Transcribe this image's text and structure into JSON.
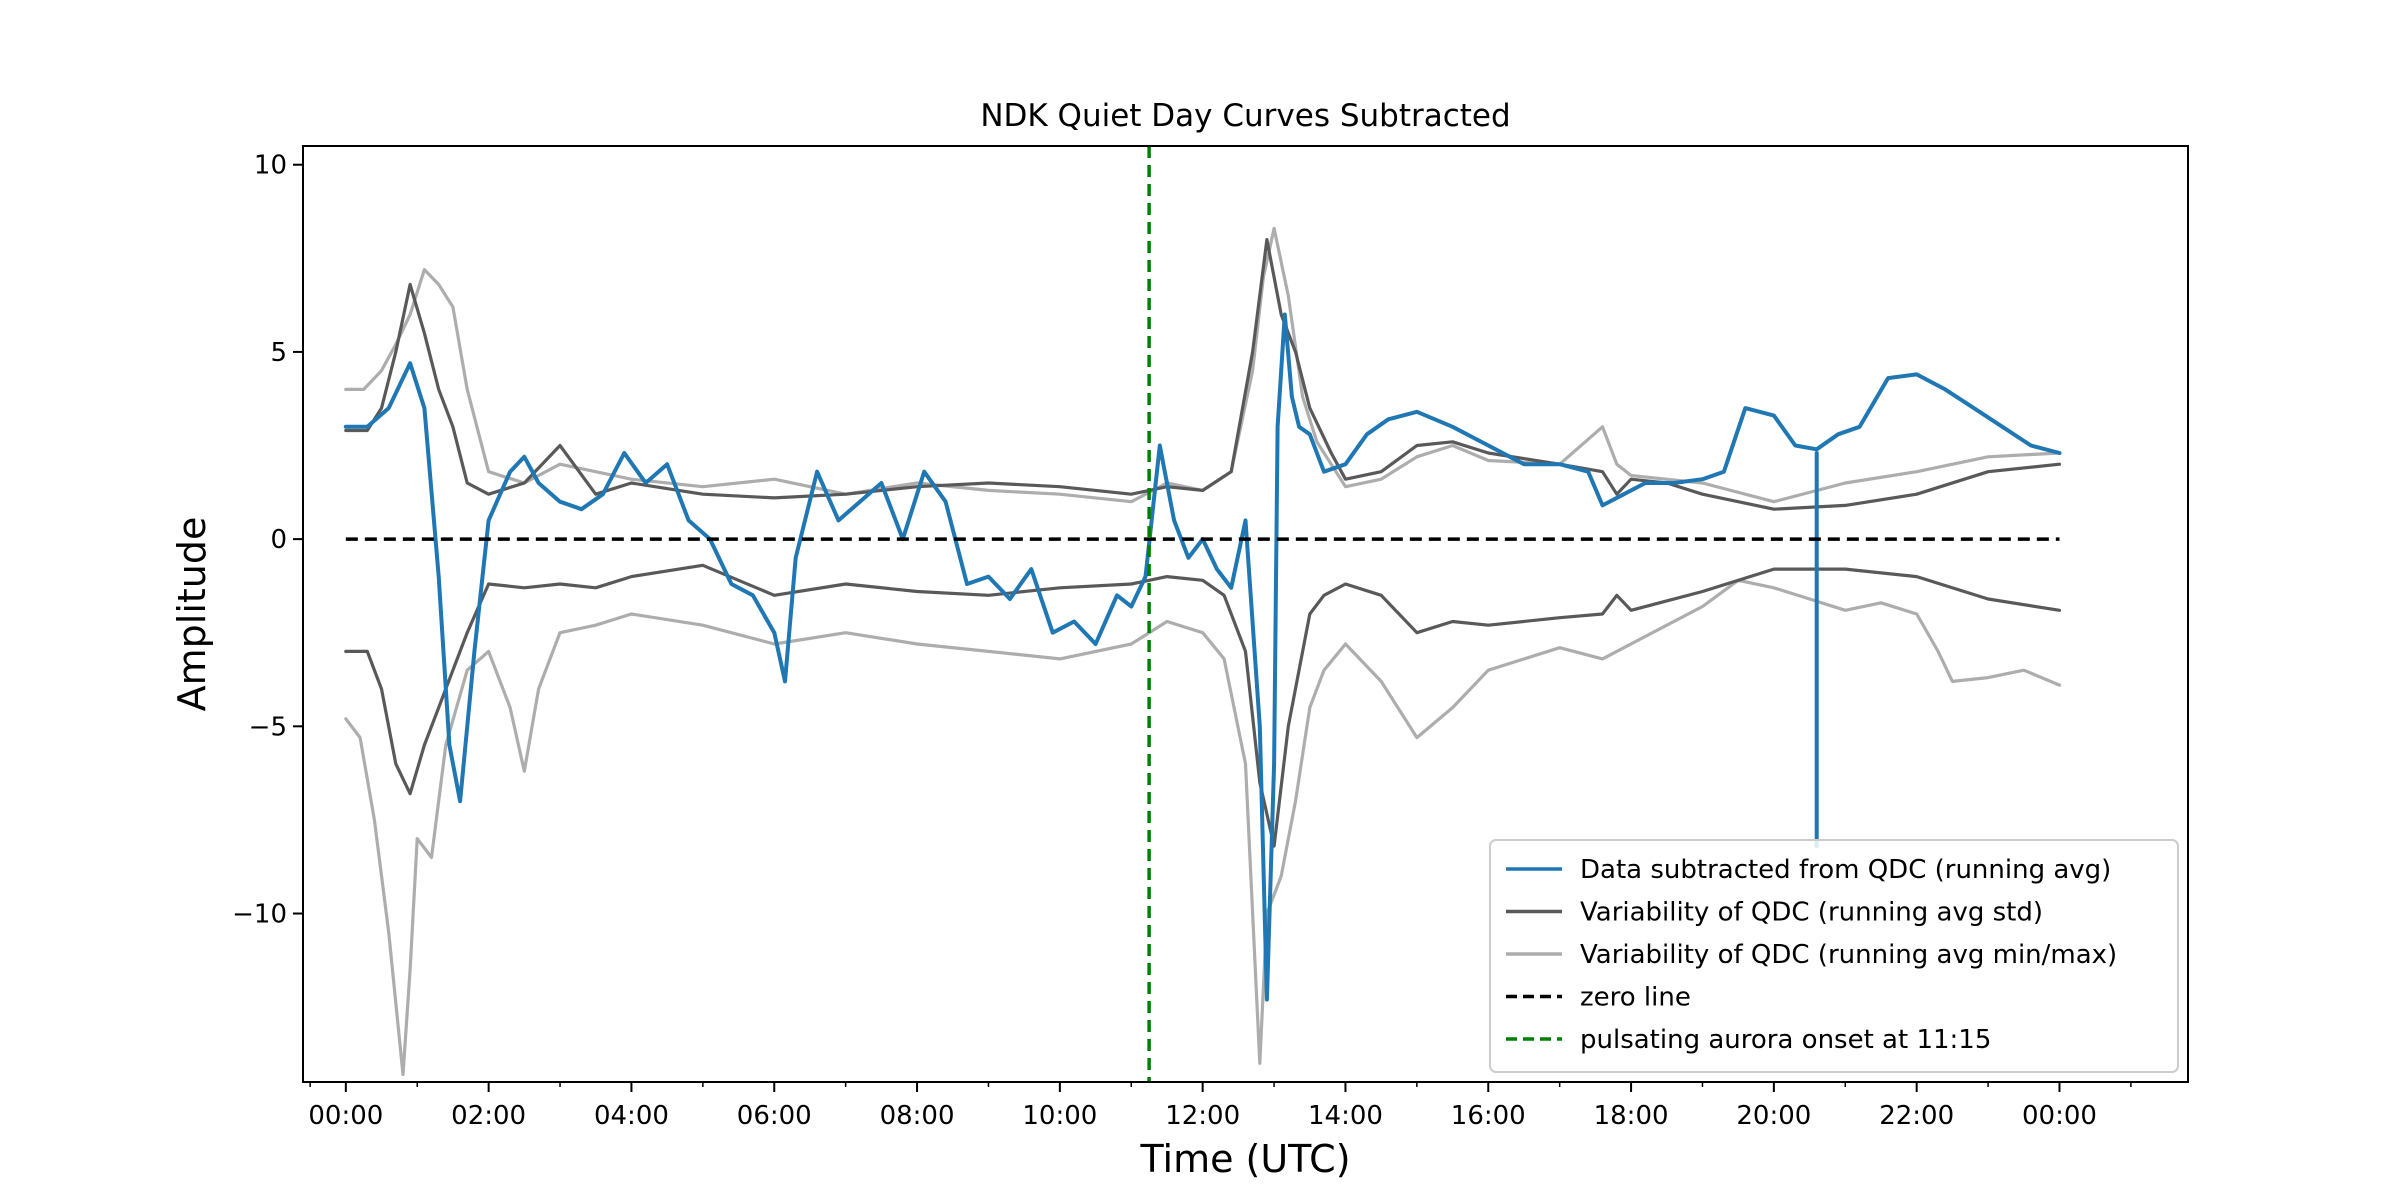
{
  "chart_data": {
    "type": "line",
    "title": "NDK Quiet Day Curves Subtracted",
    "xlabel": "Time (UTC)",
    "ylabel": "Amplitude",
    "x_unit": "hours (UTC)",
    "xlim": [
      -0.6,
      25.8
    ],
    "ylim": [
      -14.5,
      10.5
    ],
    "x_ticks": [
      0,
      2,
      4,
      6,
      8,
      10,
      12,
      14,
      16,
      18,
      20,
      22,
      24
    ],
    "x_tick_labels": [
      "00:00",
      "02:00",
      "04:00",
      "06:00",
      "08:00",
      "10:00",
      "12:00",
      "14:00",
      "16:00",
      "18:00",
      "20:00",
      "22:00",
      "00:00"
    ],
    "y_ticks": [
      10,
      5,
      0,
      -5,
      -10
    ],
    "y_tick_labels": [
      "10",
      "5",
      "0",
      "−5",
      "−10"
    ],
    "legend_position": "lower right",
    "grid": false,
    "series": [
      {
        "name": "Variability of QDC (running avg min/max)",
        "color": "#adadad",
        "style": "solid",
        "x": [
          0,
          0.25,
          0.5,
          0.7,
          0.9,
          1.1,
          1.3,
          1.5,
          1.7,
          2.0,
          2.5,
          3.0,
          3.5,
          4.0,
          5.0,
          6.0,
          7.0,
          8.0,
          9.0,
          10.0,
          11.0,
          11.5,
          12.0,
          12.4,
          12.7,
          12.85,
          13.0,
          13.2,
          13.4,
          13.6,
          14.0,
          14.5,
          15.0,
          15.5,
          16.0,
          17.0,
          17.6,
          17.8,
          18.0,
          19.0,
          20.0,
          21.0,
          22.0,
          23.0,
          24.0
        ],
        "y": [
          4.0,
          4.0,
          4.5,
          5.2,
          6.0,
          7.2,
          6.8,
          6.2,
          4.0,
          1.8,
          1.5,
          2.0,
          1.8,
          1.6,
          1.4,
          1.6,
          1.2,
          1.5,
          1.3,
          1.2,
          1.0,
          1.5,
          1.3,
          1.8,
          4.5,
          7.0,
          8.3,
          6.5,
          3.8,
          2.6,
          1.4,
          1.6,
          2.2,
          2.5,
          2.1,
          2.0,
          3.0,
          2.0,
          1.7,
          1.5,
          1.0,
          1.5,
          1.8,
          2.2,
          2.3
        ]
      },
      {
        "name": "Variability of QDC (running avg min/max)",
        "color": "#adadad",
        "style": "solid",
        "x": [
          0,
          0.2,
          0.4,
          0.6,
          0.8,
          0.9,
          1.0,
          1.2,
          1.4,
          1.7,
          2.0,
          2.3,
          2.5,
          2.7,
          3.0,
          3.5,
          4.0,
          5.0,
          6.0,
          7.0,
          8.0,
          9.0,
          10.0,
          11.0,
          11.5,
          12.0,
          12.3,
          12.6,
          12.8,
          12.9,
          13.1,
          13.3,
          13.5,
          13.7,
          14.0,
          14.5,
          15.0,
          15.5,
          16.0,
          17.0,
          17.6,
          17.9,
          18.5,
          19.0,
          19.5,
          20.0,
          20.5,
          21.0,
          21.5,
          22.0,
          22.3,
          22.5,
          23.0,
          23.5,
          24.0
        ],
        "y": [
          -4.8,
          -5.3,
          -7.5,
          -10.5,
          -14.3,
          -11.5,
          -8.0,
          -8.5,
          -5.5,
          -3.5,
          -3.0,
          -4.5,
          -6.2,
          -4.0,
          -2.5,
          -2.3,
          -2.0,
          -2.3,
          -2.8,
          -2.5,
          -2.8,
          -3.0,
          -3.2,
          -2.8,
          -2.2,
          -2.5,
          -3.2,
          -6.0,
          -14.0,
          -10.0,
          -9.0,
          -7.0,
          -4.5,
          -3.5,
          -2.8,
          -3.8,
          -5.3,
          -4.5,
          -3.5,
          -2.9,
          -3.2,
          -2.9,
          -2.3,
          -1.8,
          -1.1,
          -1.3,
          -1.6,
          -1.9,
          -1.7,
          -2.0,
          -3.0,
          -3.8,
          -3.7,
          -3.5,
          -3.9
        ]
      },
      {
        "name": "Variability of QDC (running avg std)",
        "color": "#595959",
        "style": "solid",
        "x": [
          0,
          0.3,
          0.5,
          0.7,
          0.9,
          1.1,
          1.3,
          1.5,
          1.7,
          2.0,
          2.5,
          3.0,
          3.5,
          4.0,
          5.0,
          6.0,
          7.0,
          8.0,
          9.0,
          10.0,
          11.0,
          11.5,
          12.0,
          12.4,
          12.7,
          12.9,
          13.1,
          13.3,
          13.5,
          13.8,
          14.0,
          14.5,
          15.0,
          15.5,
          16.0,
          17.0,
          17.6,
          17.8,
          18.0,
          18.5,
          19.0,
          19.5,
          20.0,
          21.0,
          22.0,
          23.0,
          24.0
        ],
        "y": [
          2.9,
          2.9,
          3.5,
          5.0,
          6.8,
          5.5,
          4.0,
          3.0,
          1.5,
          1.2,
          1.5,
          2.5,
          1.2,
          1.5,
          1.2,
          1.1,
          1.2,
          1.4,
          1.5,
          1.4,
          1.2,
          1.4,
          1.3,
          1.8,
          5.0,
          8.0,
          6.0,
          5.0,
          3.5,
          2.3,
          1.6,
          1.8,
          2.5,
          2.6,
          2.3,
          2.0,
          1.8,
          1.2,
          1.6,
          1.5,
          1.2,
          1.0,
          0.8,
          0.9,
          1.2,
          1.8,
          2.0
        ]
      },
      {
        "name": "Variability of QDC (running avg std)",
        "color": "#595959",
        "style": "solid",
        "x": [
          0,
          0.3,
          0.5,
          0.7,
          0.9,
          1.1,
          1.3,
          1.5,
          1.7,
          2.0,
          2.5,
          3.0,
          3.5,
          4.0,
          5.0,
          6.0,
          7.0,
          8.0,
          9.0,
          10.0,
          11.0,
          11.5,
          12.0,
          12.3,
          12.6,
          12.8,
          13.0,
          13.2,
          13.5,
          13.7,
          14.0,
          14.5,
          15.0,
          15.5,
          16.0,
          17.0,
          17.6,
          17.8,
          18.0,
          19.0,
          20.0,
          21.0,
          22.0,
          23.0,
          24.0
        ],
        "y": [
          -3.0,
          -3.0,
          -4.0,
          -6.0,
          -6.8,
          -5.5,
          -4.5,
          -3.5,
          -2.5,
          -1.2,
          -1.3,
          -1.2,
          -1.3,
          -1.0,
          -0.7,
          -1.5,
          -1.2,
          -1.4,
          -1.5,
          -1.3,
          -1.2,
          -1.0,
          -1.1,
          -1.5,
          -3.0,
          -6.5,
          -8.2,
          -5.0,
          -2.0,
          -1.5,
          -1.2,
          -1.5,
          -2.5,
          -2.2,
          -2.3,
          -2.1,
          -2.0,
          -1.5,
          -1.9,
          -1.4,
          -0.8,
          -0.8,
          -1.0,
          -1.6,
          -1.9
        ]
      },
      {
        "name": "Data subtracted from QDC (running avg)",
        "color": "#1f77b4",
        "style": "solid",
        "x": [
          0,
          0.3,
          0.6,
          0.9,
          1.1,
          1.3,
          1.45,
          1.6,
          1.8,
          2.0,
          2.3,
          2.5,
          2.7,
          3.0,
          3.3,
          3.6,
          3.9,
          4.2,
          4.5,
          4.8,
          5.1,
          5.4,
          5.7,
          6.0,
          6.15,
          6.3,
          6.6,
          6.9,
          7.2,
          7.5,
          7.8,
          8.1,
          8.4,
          8.7,
          9.0,
          9.3,
          9.6,
          9.9,
          10.2,
          10.5,
          10.8,
          11.0,
          11.2,
          11.4,
          11.6,
          11.8,
          12.0,
          12.2,
          12.4,
          12.6,
          12.8,
          12.9,
          13.0,
          13.05,
          13.15,
          13.25,
          13.35,
          13.5,
          13.7,
          14.0,
          14.3,
          14.6,
          15.0,
          15.5,
          16.0,
          16.5,
          17.0,
          17.4,
          17.6,
          17.9,
          18.2,
          18.6,
          19.0,
          19.3,
          19.6,
          20.0,
          20.3,
          20.6,
          20.9,
          21.2,
          21.6,
          22.0,
          22.4,
          22.8,
          23.2,
          23.6,
          24.0
        ],
        "y": [
          3.0,
          3.0,
          3.5,
          4.7,
          3.5,
          -1.0,
          -5.5,
          -7.0,
          -3.0,
          0.5,
          1.8,
          2.2,
          1.5,
          1.0,
          0.8,
          1.2,
          2.3,
          1.5,
          2.0,
          0.5,
          0.0,
          -1.2,
          -1.5,
          -2.5,
          -3.8,
          -0.5,
          1.8,
          0.5,
          1.0,
          1.5,
          0.0,
          1.8,
          1.0,
          -1.2,
          -1.0,
          -1.6,
          -0.8,
          -2.5,
          -2.2,
          -2.8,
          -1.5,
          -1.8,
          -1.0,
          2.5,
          0.5,
          -0.5,
          0.0,
          -0.8,
          -1.3,
          0.5,
          -5.0,
          -12.3,
          -6.0,
          3.0,
          6.0,
          3.8,
          3.0,
          2.8,
          1.8,
          2.0,
          2.8,
          3.2,
          3.4,
          3.0,
          2.5,
          2.0,
          2.0,
          1.8,
          0.9,
          1.2,
          1.5,
          1.5,
          1.6,
          1.8,
          3.5,
          3.3,
          2.5,
          2.4,
          2.8,
          3.0,
          4.3,
          4.4,
          4.0,
          3.5,
          3.0,
          2.5,
          2.3
        ]
      },
      {
        "name": "Data subtracted from QDC (running avg)",
        "color": "#1f77b4",
        "style": "solid",
        "x": [
          20.6,
          20.6
        ],
        "y": [
          2.3,
          -8.2
        ]
      }
    ],
    "reference_lines": [
      {
        "name": "zero line",
        "color": "#000000",
        "style": "dashed",
        "orientation": "horizontal",
        "value": 0,
        "x_range": [
          0,
          24
        ]
      },
      {
        "name": "pulsating aurora onset at 11:15",
        "color": "#008000",
        "style": "dashed",
        "orientation": "vertical",
        "value": 11.25
      }
    ],
    "legend": [
      {
        "label": "Data subtracted from QDC (running avg)",
        "color": "#1f77b4",
        "style": "solid"
      },
      {
        "label": "Variability of QDC (running avg std)",
        "color": "#595959",
        "style": "solid"
      },
      {
        "label": "Variability of QDC (running avg min/max)",
        "color": "#adadad",
        "style": "solid"
      },
      {
        "label": "zero line",
        "color": "#000000",
        "style": "dashed"
      },
      {
        "label": "pulsating aurora onset at 11:15",
        "color": "#008000",
        "style": "dashed"
      }
    ]
  }
}
